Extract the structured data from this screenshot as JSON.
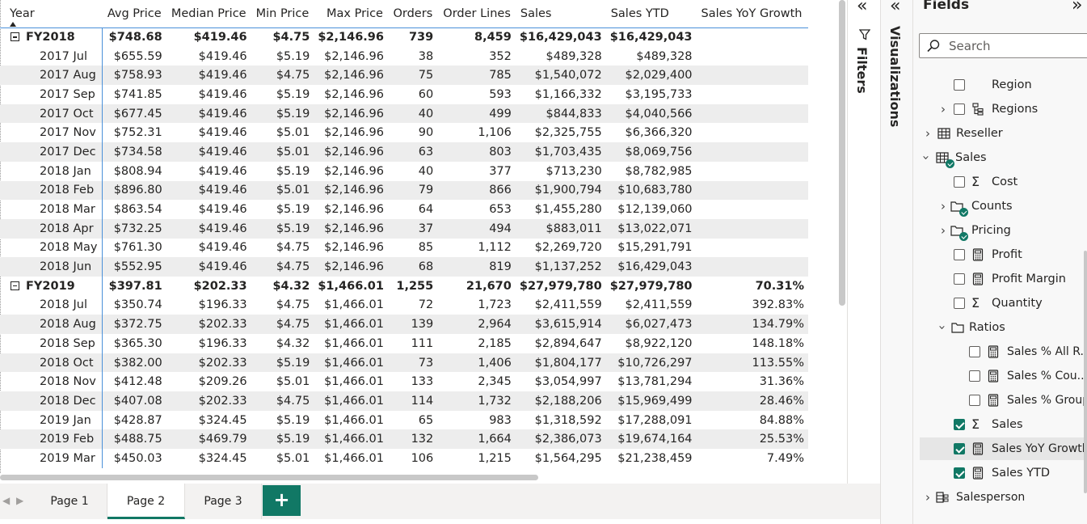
{
  "matrix": {
    "columns": [
      "Year",
      "Avg Price",
      "Median Price",
      "Min Price",
      "Max Price",
      "Orders",
      "Order Lines",
      "Sales",
      "Sales YTD",
      "Sales YoY Growth"
    ],
    "rows": [
      {
        "type": "total",
        "label": "FY2018",
        "values": [
          "$748.68",
          "$419.46",
          "$4.75",
          "$2,146.96",
          "739",
          "8,459",
          "$16,429,043",
          "$16,429,043",
          ""
        ]
      },
      {
        "type": "month",
        "label": "2017 Jul",
        "values": [
          "$655.59",
          "$419.46",
          "$5.19",
          "$2,146.96",
          "38",
          "352",
          "$489,328",
          "$489,328",
          ""
        ]
      },
      {
        "type": "month",
        "label": "2017 Aug",
        "values": [
          "$758.93",
          "$419.46",
          "$4.75",
          "$2,146.96",
          "75",
          "785",
          "$1,540,072",
          "$2,029,400",
          ""
        ]
      },
      {
        "type": "month",
        "label": "2017 Sep",
        "values": [
          "$741.85",
          "$419.46",
          "$5.19",
          "$2,146.96",
          "60",
          "593",
          "$1,166,332",
          "$3,195,733",
          ""
        ]
      },
      {
        "type": "month",
        "label": "2017 Oct",
        "values": [
          "$677.45",
          "$419.46",
          "$5.19",
          "$2,146.96",
          "40",
          "499",
          "$844,833",
          "$4,040,566",
          ""
        ]
      },
      {
        "type": "month",
        "label": "2017 Nov",
        "values": [
          "$752.31",
          "$419.46",
          "$5.01",
          "$2,146.96",
          "90",
          "1,106",
          "$2,325,755",
          "$6,366,320",
          ""
        ]
      },
      {
        "type": "month",
        "label": "2017 Dec",
        "values": [
          "$734.58",
          "$419.46",
          "$5.01",
          "$2,146.96",
          "63",
          "803",
          "$1,703,435",
          "$8,069,756",
          ""
        ]
      },
      {
        "type": "month",
        "label": "2018 Jan",
        "values": [
          "$808.94",
          "$419.46",
          "$5.19",
          "$2,146.96",
          "40",
          "377",
          "$713,230",
          "$8,782,985",
          ""
        ]
      },
      {
        "type": "month",
        "label": "2018 Feb",
        "values": [
          "$896.80",
          "$419.46",
          "$5.01",
          "$2,146.96",
          "79",
          "866",
          "$1,900,794",
          "$10,683,780",
          ""
        ]
      },
      {
        "type": "month",
        "label": "2018 Mar",
        "values": [
          "$863.54",
          "$419.46",
          "$5.19",
          "$2,146.96",
          "64",
          "653",
          "$1,455,280",
          "$12,139,060",
          ""
        ]
      },
      {
        "type": "month",
        "label": "2018 Apr",
        "values": [
          "$732.25",
          "$419.46",
          "$5.19",
          "$2,146.96",
          "37",
          "494",
          "$883,011",
          "$13,022,071",
          ""
        ]
      },
      {
        "type": "month",
        "label": "2018 May",
        "values": [
          "$761.30",
          "$419.46",
          "$4.75",
          "$2,146.96",
          "85",
          "1,112",
          "$2,269,720",
          "$15,291,791",
          ""
        ]
      },
      {
        "type": "month",
        "label": "2018 Jun",
        "values": [
          "$552.95",
          "$419.46",
          "$4.75",
          "$2,146.96",
          "68",
          "819",
          "$1,137,252",
          "$16,429,043",
          ""
        ]
      },
      {
        "type": "total",
        "label": "FY2019",
        "values": [
          "$397.81",
          "$202.33",
          "$4.32",
          "$1,466.01",
          "1,255",
          "21,670",
          "$27,979,780",
          "$27,979,780",
          "70.31%"
        ]
      },
      {
        "type": "month",
        "label": "2018 Jul",
        "values": [
          "$350.74",
          "$196.33",
          "$4.75",
          "$1,466.01",
          "72",
          "1,723",
          "$2,411,559",
          "$2,411,559",
          "392.83%"
        ]
      },
      {
        "type": "month",
        "label": "2018 Aug",
        "values": [
          "$372.75",
          "$202.33",
          "$4.75",
          "$1,466.01",
          "139",
          "2,964",
          "$3,615,914",
          "$6,027,473",
          "134.79%"
        ]
      },
      {
        "type": "month",
        "label": "2018 Sep",
        "values": [
          "$365.30",
          "$196.33",
          "$4.32",
          "$1,466.01",
          "111",
          "2,185",
          "$2,894,647",
          "$8,922,120",
          "148.18%"
        ]
      },
      {
        "type": "month",
        "label": "2018 Oct",
        "values": [
          "$382.00",
          "$202.33",
          "$5.19",
          "$1,466.01",
          "73",
          "1,406",
          "$1,804,177",
          "$10,726,297",
          "113.55%"
        ]
      },
      {
        "type": "month",
        "label": "2018 Nov",
        "values": [
          "$412.48",
          "$209.26",
          "$5.01",
          "$1,466.01",
          "133",
          "2,345",
          "$3,054,997",
          "$13,781,294",
          "31.36%"
        ]
      },
      {
        "type": "month",
        "label": "2018 Dec",
        "values": [
          "$407.08",
          "$202.33",
          "$4.75",
          "$1,466.01",
          "114",
          "1,732",
          "$2,188,206",
          "$15,969,499",
          "28.46%"
        ]
      },
      {
        "type": "month",
        "label": "2019 Jan",
        "values": [
          "$428.87",
          "$324.45",
          "$5.19",
          "$1,466.01",
          "65",
          "983",
          "$1,318,592",
          "$17,288,091",
          "84.88%"
        ]
      },
      {
        "type": "month",
        "label": "2019 Feb",
        "values": [
          "$488.75",
          "$469.79",
          "$5.19",
          "$1,466.01",
          "132",
          "1,664",
          "$2,386,073",
          "$19,674,164",
          "25.53%"
        ]
      },
      {
        "type": "month",
        "label": "2019 Mar",
        "values": [
          "$450.03",
          "$324.45",
          "$5.01",
          "$1,466.01",
          "106",
          "1,215",
          "$1,564,295",
          "$21,238,459",
          "7.49%"
        ]
      }
    ]
  },
  "page_tabs": {
    "tabs": [
      "Page 1",
      "Page 2",
      "Page 3"
    ],
    "active": "Page 2",
    "add_label": "+"
  },
  "filters_pane": {
    "title": "Filters"
  },
  "visualizations_pane": {
    "title": "Visualizations"
  },
  "fields_pane": {
    "title": "Fields",
    "search_placeholder": "Search",
    "items": {
      "region": "Region",
      "regions": "Regions",
      "reseller": "Reseller",
      "sales": "Sales",
      "cost": "Cost",
      "counts": "Counts",
      "pricing": "Pricing",
      "profit": "Profit",
      "profit_margin": "Profit Margin",
      "quantity": "Quantity",
      "ratios": "Ratios",
      "sales_pct_all": "Sales % All R...",
      "sales_pct_cou": "Sales % Cou...",
      "sales_pct_group": "Sales % Group",
      "sales_measure": "Sales",
      "sales_yoy_growth": "Sales YoY Growth",
      "sales_ytd": "Sales YTD",
      "salesperson": "Salesperson"
    }
  },
  "colors": {
    "accent": "#117865",
    "header_rule": "#4a90d9",
    "band": "#ededed"
  }
}
